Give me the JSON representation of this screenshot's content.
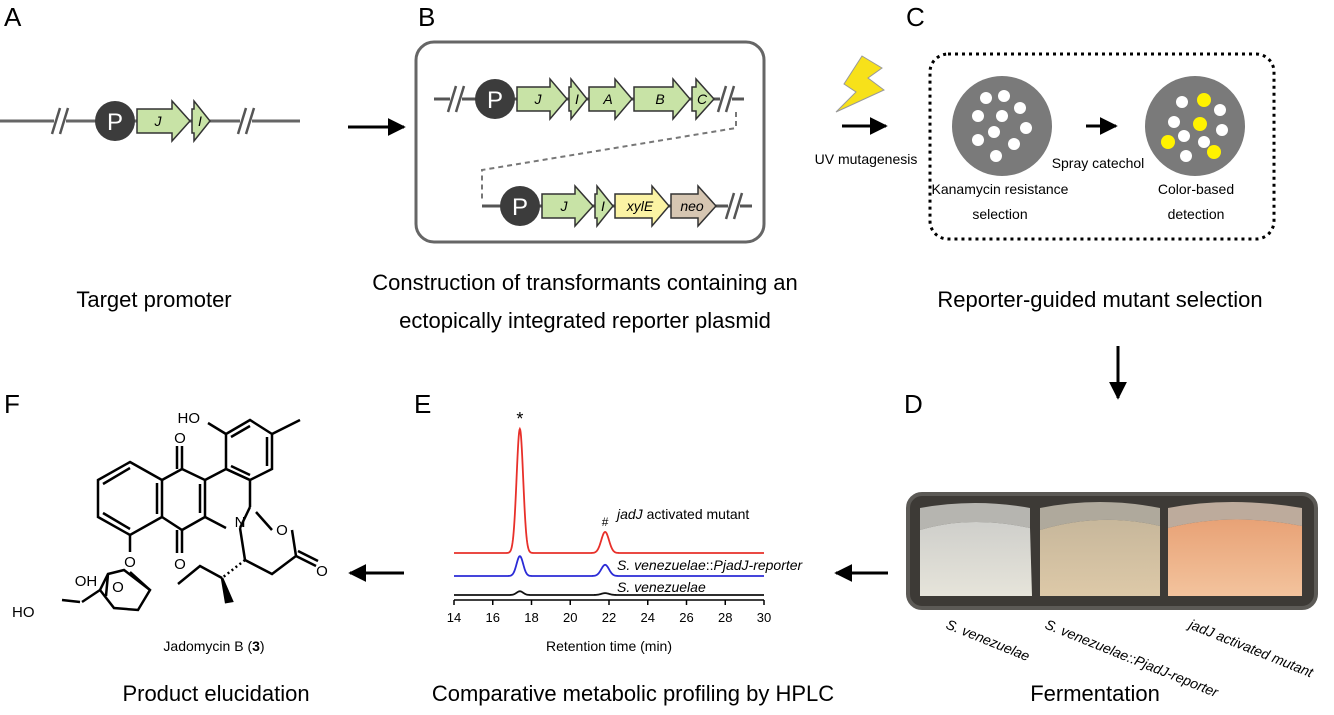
{
  "panels": {
    "A": {
      "letter": "A",
      "caption": "Target promoter",
      "promoter": "P",
      "genes": [
        "J",
        "I"
      ]
    },
    "B": {
      "letter": "B",
      "caption_line1": "Construction of transformants containing an",
      "caption_line2": "ectopically integrated reporter plasmid",
      "promoter": "P",
      "top_genes": [
        "J",
        "I",
        "A",
        "B",
        "C"
      ],
      "bottom_genes": [
        "J",
        "I",
        "xylE",
        "neo"
      ]
    },
    "C": {
      "letter": "C",
      "caption": "Reporter-guided mutant selection",
      "uv_label": "UV mutagenesis",
      "spray_label": "Spray catechol",
      "plate1_label_line1": "Kanamycin resistance",
      "plate1_label_line2": "selection",
      "plate2_label_line1": "Color-based",
      "plate2_label_line2": "detection"
    },
    "D": {
      "letter": "D",
      "caption": "Fermentation",
      "flask_labels": [
        "S. venezuelae",
        "S. venezuelae::PjadJ-reporter",
        "jadJ activated mutant"
      ]
    },
    "E": {
      "letter": "E",
      "caption": "Comparative metabolic profiling by HPLC",
      "xlabel": "Retention time (min)",
      "peak_marks": [
        "*",
        "#"
      ],
      "traces": [
        {
          "name_italic": "jadJ",
          "name_rest": " activated mutant",
          "color": "#e8302a"
        },
        {
          "name_italic": "S. venezuelae",
          "name_rest": "::",
          "name_italic2": "PjadJ-reporter",
          "color": "#2b2bd6"
        },
        {
          "name_italic": "S. venezuelae",
          "name_rest": "",
          "color": "#111111"
        }
      ]
    },
    "F": {
      "letter": "F",
      "caption": "Product elucidation",
      "compound": "Jadomycin B (",
      "compound_num": "3",
      "compound_close": ")",
      "atoms": {
        "HO_top": "HO",
        "O1": "O",
        "O2": "O",
        "N": "N",
        "O_ring": "O",
        "O_carbonyl": "O",
        "O_ether": "O",
        "O_sugar": "O",
        "OH": "OH",
        "HO_sugar": "HO"
      }
    }
  },
  "chart_data": {
    "type": "line",
    "x_ticks": [
      14,
      16,
      18,
      20,
      22,
      24,
      26,
      28,
      30
    ],
    "xlim": [
      14,
      30
    ],
    "xlabel": "Retention time (min)",
    "series": [
      {
        "name": "jadJ activated mutant",
        "peaks": [
          {
            "x": 17.4,
            "height": 1.0
          },
          {
            "x": 21.8,
            "height": 0.17
          }
        ]
      },
      {
        "name": "S. venezuelae::PjadJ-reporter",
        "peaks": [
          {
            "x": 17.4,
            "height": 0.16
          },
          {
            "x": 21.8,
            "height": 0.09
          }
        ]
      },
      {
        "name": "S. venezuelae",
        "peaks": [
          {
            "x": 17.4,
            "height": 0.03
          },
          {
            "x": 21.8,
            "height": 0.015
          }
        ]
      }
    ]
  },
  "colors": {
    "gene_green": "#c8e3a6",
    "gene_stroke": "#333333",
    "xylE_yellow": "#fbf3a4",
    "neo_tan": "#d6c6b2",
    "promoter": "#3c3c3c",
    "plate": "#7a7a7a",
    "yellow_colony": "#fff200",
    "bolt": "#f7e11a"
  }
}
